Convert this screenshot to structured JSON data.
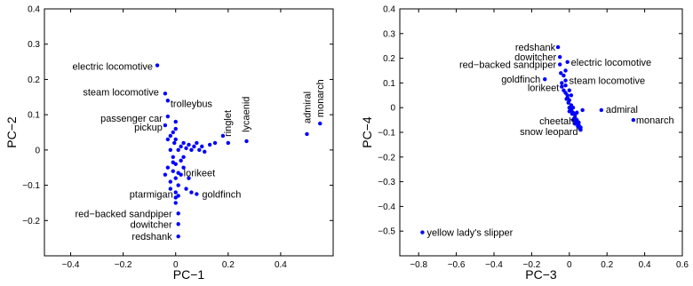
{
  "chart_data": [
    {
      "type": "scatter",
      "xlabel": "PC−1",
      "ylabel": "PC−2",
      "xlim": [
        -0.5,
        0.6
      ],
      "ylim": [
        -0.3,
        0.4
      ],
      "xticks": [
        -0.4,
        -0.2,
        0,
        0.2,
        0.4
      ],
      "xtick_labels": [
        "−0.4",
        "−0.2",
        "0",
        "0.2",
        "0.4"
      ],
      "yticks": [
        -0.2,
        -0.1,
        0,
        0.1,
        0.2,
        0.3,
        0.4
      ],
      "ytick_labels": [
        "−0.2",
        "−0.1",
        "0",
        "0.1",
        "0.2",
        "0.3",
        "0.4"
      ],
      "grid": false,
      "color": "#0000ff",
      "labeled_points": [
        {
          "label": "electric locomotive",
          "x": -0.07,
          "y": 0.24
        },
        {
          "label": "steam locomotive",
          "x": -0.04,
          "y": 0.16
        },
        {
          "label": "trolleybus",
          "x": -0.03,
          "y": 0.14
        },
        {
          "label": "passenger car",
          "x": -0.03,
          "y": 0.095
        },
        {
          "label": "pickup",
          "x": -0.04,
          "y": 0.07
        },
        {
          "label": "ringlet",
          "x": 0.2,
          "y": 0.02
        },
        {
          "label": "lycaenid",
          "x": 0.27,
          "y": 0.025
        },
        {
          "label": "admiral",
          "x": 0.5,
          "y": 0.045
        },
        {
          "label": "monarch",
          "x": 0.55,
          "y": 0.075
        },
        {
          "label": "lorikeet",
          "x": 0.01,
          "y": -0.065
        },
        {
          "label": "goldfinch",
          "x": 0.08,
          "y": -0.125
        },
        {
          "label": "ptarmigan",
          "x": 0.0,
          "y": -0.135
        },
        {
          "label": "red−backed sandpiper",
          "x": 0.01,
          "y": -0.18
        },
        {
          "label": "dowitcher",
          "x": 0.01,
          "y": -0.21
        },
        {
          "label": "redshank",
          "x": 0.01,
          "y": -0.245
        }
      ],
      "points": [
        [
          -0.005,
          0.02
        ],
        [
          0.0,
          0.03
        ],
        [
          0.01,
          0.0
        ],
        [
          -0.01,
          -0.02
        ],
        [
          0.02,
          0.01
        ],
        [
          -0.02,
          0.0
        ],
        [
          0.03,
          0.02
        ],
        [
          0.05,
          0.015
        ],
        [
          0.08,
          0.02
        ],
        [
          0.1,
          0.01
        ],
        [
          0.13,
          0.015
        ],
        [
          0.15,
          0.02
        ],
        [
          0.18,
          0.04
        ],
        [
          0.06,
          0.0
        ],
        [
          0.0,
          -0.04
        ],
        [
          -0.01,
          -0.06
        ],
        [
          0.0,
          -0.08
        ],
        [
          -0.02,
          -0.09
        ],
        [
          0.01,
          -0.1
        ],
        [
          0.0,
          -0.12
        ],
        [
          -0.03,
          -0.05
        ],
        [
          -0.04,
          -0.07
        ],
        [
          0.03,
          -0.05
        ],
        [
          0.05,
          -0.08
        ],
        [
          0.04,
          -0.11
        ],
        [
          -0.01,
          0.05
        ],
        [
          -0.02,
          0.04
        ],
        [
          0.0,
          0.06
        ],
        [
          -0.03,
          0.03
        ],
        [
          0.02,
          -0.03
        ],
        [
          0.06,
          -0.12
        ],
        [
          0.0,
          -0.15
        ],
        [
          0.02,
          -0.07
        ],
        [
          -0.02,
          -0.11
        ],
        [
          0.01,
          -0.13
        ],
        [
          0.03,
          -0.02
        ],
        [
          0.09,
          0.0
        ],
        [
          0.0,
          0.08
        ],
        [
          0.11,
          -0.005
        ],
        [
          -0.01,
          -0.035
        ],
        [
          0.04,
          0.005
        ],
        [
          0.07,
          0.01
        ]
      ]
    },
    {
      "type": "scatter",
      "xlabel": "PC−3",
      "ylabel": "PC−4",
      "xlim": [
        -0.9,
        0.6
      ],
      "ylim": [
        -0.6,
        0.4
      ],
      "xticks": [
        -0.8,
        -0.6,
        -0.4,
        -0.2,
        0,
        0.2,
        0.4,
        0.6
      ],
      "xtick_labels": [
        "−0.8",
        "−0.6",
        "−0.4",
        "−0.2",
        "0",
        "0.2",
        "0.4",
        "0.6"
      ],
      "yticks": [
        -0.5,
        -0.4,
        -0.3,
        -0.2,
        -0.1,
        0,
        0.1,
        0.2,
        0.3,
        0.4
      ],
      "ytick_labels": [
        "−0.5",
        "−0.4",
        "−0.3",
        "−0.2",
        "−0.1",
        "0",
        "0.1",
        "0.2",
        "0.3",
        "0.4"
      ],
      "grid": false,
      "color": "#0000ff",
      "labeled_points": [
        {
          "label": "redshank",
          "x": -0.06,
          "y": 0.245
        },
        {
          "label": "dowitcher",
          "x": -0.05,
          "y": 0.205
        },
        {
          "label": "red−backed sandpiper",
          "x": -0.05,
          "y": 0.175
        },
        {
          "label": "electric locomotive",
          "x": -0.01,
          "y": 0.185
        },
        {
          "label": "goldfinch",
          "x": -0.13,
          "y": 0.115
        },
        {
          "label": "steam locomotive",
          "x": -0.02,
          "y": 0.11
        },
        {
          "label": "lorikeet",
          "x": -0.04,
          "y": 0.085
        },
        {
          "label": "admiral",
          "x": 0.17,
          "y": -0.01
        },
        {
          "label": "monarch",
          "x": 0.34,
          "y": -0.05
        },
        {
          "label": "cheetah",
          "x": 0.04,
          "y": -0.06
        },
        {
          "label": "snow leopard",
          "x": 0.06,
          "y": -0.09
        },
        {
          "label": "yellow lady's slipper",
          "x": -0.78,
          "y": -0.505
        }
      ],
      "points": [
        [
          -0.02,
          0.06
        ],
        [
          -0.01,
          0.04
        ],
        [
          0.0,
          0.03
        ],
        [
          0.01,
          0.01
        ],
        [
          0.0,
          0.0
        ],
        [
          0.02,
          -0.02
        ],
        [
          0.03,
          -0.04
        ],
        [
          0.04,
          -0.05
        ],
        [
          0.05,
          -0.07
        ],
        [
          0.02,
          0.0
        ],
        [
          0.01,
          -0.01
        ],
        [
          0.03,
          -0.03
        ],
        [
          -0.01,
          0.05
        ],
        [
          -0.03,
          0.07
        ],
        [
          -0.04,
          0.1
        ],
        [
          -0.02,
          0.09
        ],
        [
          -0.03,
          0.13
        ],
        [
          -0.02,
          0.15
        ],
        [
          0.0,
          0.07
        ],
        [
          0.01,
          0.05
        ],
        [
          0.04,
          -0.02
        ],
        [
          0.05,
          -0.06
        ],
        [
          0.06,
          -0.08
        ],
        [
          0.035,
          -0.055
        ],
        [
          0.045,
          -0.075
        ],
        [
          0.015,
          -0.025
        ],
        [
          0.025,
          -0.045
        ],
        [
          -0.005,
          0.02
        ],
        [
          0.0,
          -0.015
        ],
        [
          0.055,
          -0.085
        ],
        [
          -0.015,
          0.035
        ],
        [
          0.02,
          -0.05
        ],
        [
          0.03,
          -0.065
        ],
        [
          -0.045,
          0.14
        ],
        [
          0.07,
          -0.01
        ]
      ]
    }
  ]
}
